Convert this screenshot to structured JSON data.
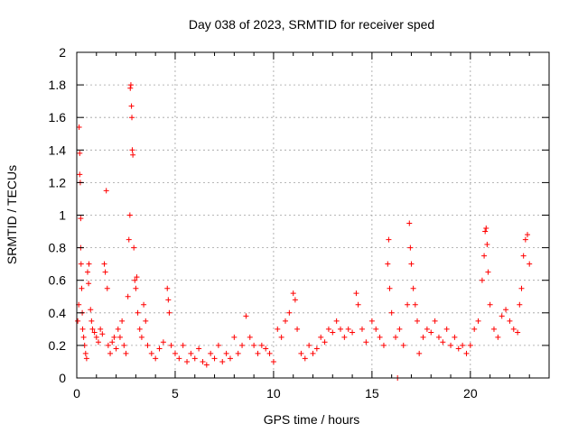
{
  "chart_data": {
    "type": "scatter",
    "title": "Day 038 of 2023, SRMTID for receiver sped",
    "xlabel": "GPS time / hours",
    "ylabel": "SRMTID / TECUs",
    "xlim": [
      0,
      24
    ],
    "ylim": [
      0,
      2
    ],
    "xticks": [
      0,
      5,
      10,
      15,
      20
    ],
    "xtick_labels": [
      "0",
      "5",
      "10",
      "15",
      "20"
    ],
    "yticks": [
      0,
      0.2,
      0.4,
      0.6,
      0.8,
      1,
      1.2,
      1.4,
      1.6,
      1.8,
      2
    ],
    "ytick_labels": [
      "0",
      "0.2",
      "0.4",
      "0.6",
      "0.8",
      "1",
      "1.2",
      "1.4",
      "1.6",
      "1.8",
      "2"
    ],
    "grid": true,
    "marker": "+",
    "color": "#ff0000",
    "series": [
      {
        "name": "sped",
        "points": [
          [
            0.05,
            0.35
          ],
          [
            0.1,
            0.45
          ],
          [
            0.12,
            1.54
          ],
          [
            0.15,
            1.38
          ],
          [
            0.15,
            1.25
          ],
          [
            0.18,
            1.2
          ],
          [
            0.2,
            0.98
          ],
          [
            0.2,
            0.8
          ],
          [
            0.22,
            0.7
          ],
          [
            0.25,
            0.55
          ],
          [
            0.28,
            0.4
          ],
          [
            0.3,
            0.3
          ],
          [
            0.35,
            0.25
          ],
          [
            0.4,
            0.2
          ],
          [
            0.45,
            0.15
          ],
          [
            0.5,
            0.12
          ],
          [
            0.55,
            0.65
          ],
          [
            0.6,
            0.58
          ],
          [
            0.62,
            0.7
          ],
          [
            0.7,
            0.42
          ],
          [
            0.75,
            0.35
          ],
          [
            0.8,
            0.3
          ],
          [
            0.9,
            0.28
          ],
          [
            1.0,
            0.25
          ],
          [
            1.1,
            0.22
          ],
          [
            1.2,
            0.3
          ],
          [
            1.3,
            0.27
          ],
          [
            1.4,
            0.7
          ],
          [
            1.45,
            0.65
          ],
          [
            1.5,
            1.15
          ],
          [
            1.55,
            0.55
          ],
          [
            1.6,
            0.2
          ],
          [
            1.7,
            0.15
          ],
          [
            1.8,
            0.22
          ],
          [
            1.9,
            0.25
          ],
          [
            2.0,
            0.18
          ],
          [
            2.1,
            0.3
          ],
          [
            2.2,
            0.25
          ],
          [
            2.3,
            0.35
          ],
          [
            2.4,
            0.2
          ],
          [
            2.5,
            0.15
          ],
          [
            2.6,
            0.5
          ],
          [
            2.65,
            0.85
          ],
          [
            2.7,
            1.0
          ],
          [
            2.72,
            1.78
          ],
          [
            2.75,
            1.8
          ],
          [
            2.78,
            1.67
          ],
          [
            2.8,
            1.6
          ],
          [
            2.82,
            1.4
          ],
          [
            2.85,
            1.37
          ],
          [
            2.9,
            0.8
          ],
          [
            2.95,
            0.6
          ],
          [
            3.0,
            0.55
          ],
          [
            3.05,
            0.62
          ],
          [
            3.1,
            0.4
          ],
          [
            3.2,
            0.3
          ],
          [
            3.3,
            0.25
          ],
          [
            3.4,
            0.45
          ],
          [
            3.5,
            0.35
          ],
          [
            3.6,
            0.2
          ],
          [
            3.8,
            0.15
          ],
          [
            4.0,
            0.12
          ],
          [
            4.2,
            0.18
          ],
          [
            4.4,
            0.22
          ],
          [
            4.6,
            0.55
          ],
          [
            4.65,
            0.48
          ],
          [
            4.7,
            0.4
          ],
          [
            4.8,
            0.2
          ],
          [
            5.0,
            0.15
          ],
          [
            5.2,
            0.12
          ],
          [
            5.4,
            0.2
          ],
          [
            5.6,
            0.1
          ],
          [
            5.8,
            0.15
          ],
          [
            6.0,
            0.12
          ],
          [
            6.2,
            0.18
          ],
          [
            6.4,
            0.1
          ],
          [
            6.6,
            0.08
          ],
          [
            6.8,
            0.15
          ],
          [
            7.0,
            0.12
          ],
          [
            7.2,
            0.2
          ],
          [
            7.4,
            0.1
          ],
          [
            7.6,
            0.15
          ],
          [
            7.8,
            0.12
          ],
          [
            8.0,
            0.25
          ],
          [
            8.2,
            0.15
          ],
          [
            8.4,
            0.2
          ],
          [
            8.6,
            0.38
          ],
          [
            8.8,
            0.25
          ],
          [
            9.0,
            0.2
          ],
          [
            9.2,
            0.15
          ],
          [
            9.4,
            0.2
          ],
          [
            9.6,
            0.18
          ],
          [
            9.8,
            0.15
          ],
          [
            10.0,
            0.1
          ],
          [
            10.2,
            0.3
          ],
          [
            10.4,
            0.25
          ],
          [
            10.6,
            0.35
          ],
          [
            10.8,
            0.4
          ],
          [
            11.0,
            0.52
          ],
          [
            11.1,
            0.48
          ],
          [
            11.2,
            0.3
          ],
          [
            11.4,
            0.15
          ],
          [
            11.6,
            0.12
          ],
          [
            11.8,
            0.2
          ],
          [
            12.0,
            0.15
          ],
          [
            12.2,
            0.18
          ],
          [
            12.4,
            0.25
          ],
          [
            12.6,
            0.22
          ],
          [
            12.8,
            0.3
          ],
          [
            13.0,
            0.28
          ],
          [
            13.2,
            0.35
          ],
          [
            13.4,
            0.3
          ],
          [
            13.6,
            0.25
          ],
          [
            13.8,
            0.3
          ],
          [
            14.0,
            0.28
          ],
          [
            14.2,
            0.52
          ],
          [
            14.3,
            0.45
          ],
          [
            14.5,
            0.3
          ],
          [
            14.7,
            0.22
          ],
          [
            15.0,
            0.35
          ],
          [
            15.2,
            0.3
          ],
          [
            15.4,
            0.25
          ],
          [
            15.6,
            0.2
          ],
          [
            15.8,
            0.7
          ],
          [
            15.85,
            0.85
          ],
          [
            15.9,
            0.55
          ],
          [
            16.0,
            0.4
          ],
          [
            16.2,
            0.25
          ],
          [
            16.3,
            0.0
          ],
          [
            16.4,
            0.3
          ],
          [
            16.6,
            0.2
          ],
          [
            16.8,
            0.45
          ],
          [
            16.9,
            0.95
          ],
          [
            16.95,
            0.8
          ],
          [
            17.0,
            0.7
          ],
          [
            17.1,
            0.55
          ],
          [
            17.2,
            0.45
          ],
          [
            17.3,
            0.35
          ],
          [
            17.4,
            0.15
          ],
          [
            17.6,
            0.25
          ],
          [
            17.8,
            0.3
          ],
          [
            18.0,
            0.28
          ],
          [
            18.2,
            0.35
          ],
          [
            18.4,
            0.25
          ],
          [
            18.6,
            0.22
          ],
          [
            18.8,
            0.3
          ],
          [
            19.0,
            0.2
          ],
          [
            19.2,
            0.25
          ],
          [
            19.4,
            0.18
          ],
          [
            19.6,
            0.2
          ],
          [
            19.8,
            0.15
          ],
          [
            20.0,
            0.2
          ],
          [
            20.2,
            0.3
          ],
          [
            20.4,
            0.35
          ],
          [
            20.6,
            0.6
          ],
          [
            20.7,
            0.75
          ],
          [
            20.75,
            0.9
          ],
          [
            20.8,
            0.92
          ],
          [
            20.85,
            0.82
          ],
          [
            20.9,
            0.65
          ],
          [
            21.0,
            0.45
          ],
          [
            21.2,
            0.3
          ],
          [
            21.4,
            0.25
          ],
          [
            21.6,
            0.38
          ],
          [
            21.8,
            0.42
          ],
          [
            22.0,
            0.35
          ],
          [
            22.2,
            0.3
          ],
          [
            22.4,
            0.28
          ],
          [
            22.5,
            0.45
          ],
          [
            22.6,
            0.55
          ],
          [
            22.7,
            0.75
          ],
          [
            22.8,
            0.85
          ],
          [
            22.9,
            0.88
          ],
          [
            23.0,
            0.7
          ]
        ]
      }
    ]
  }
}
